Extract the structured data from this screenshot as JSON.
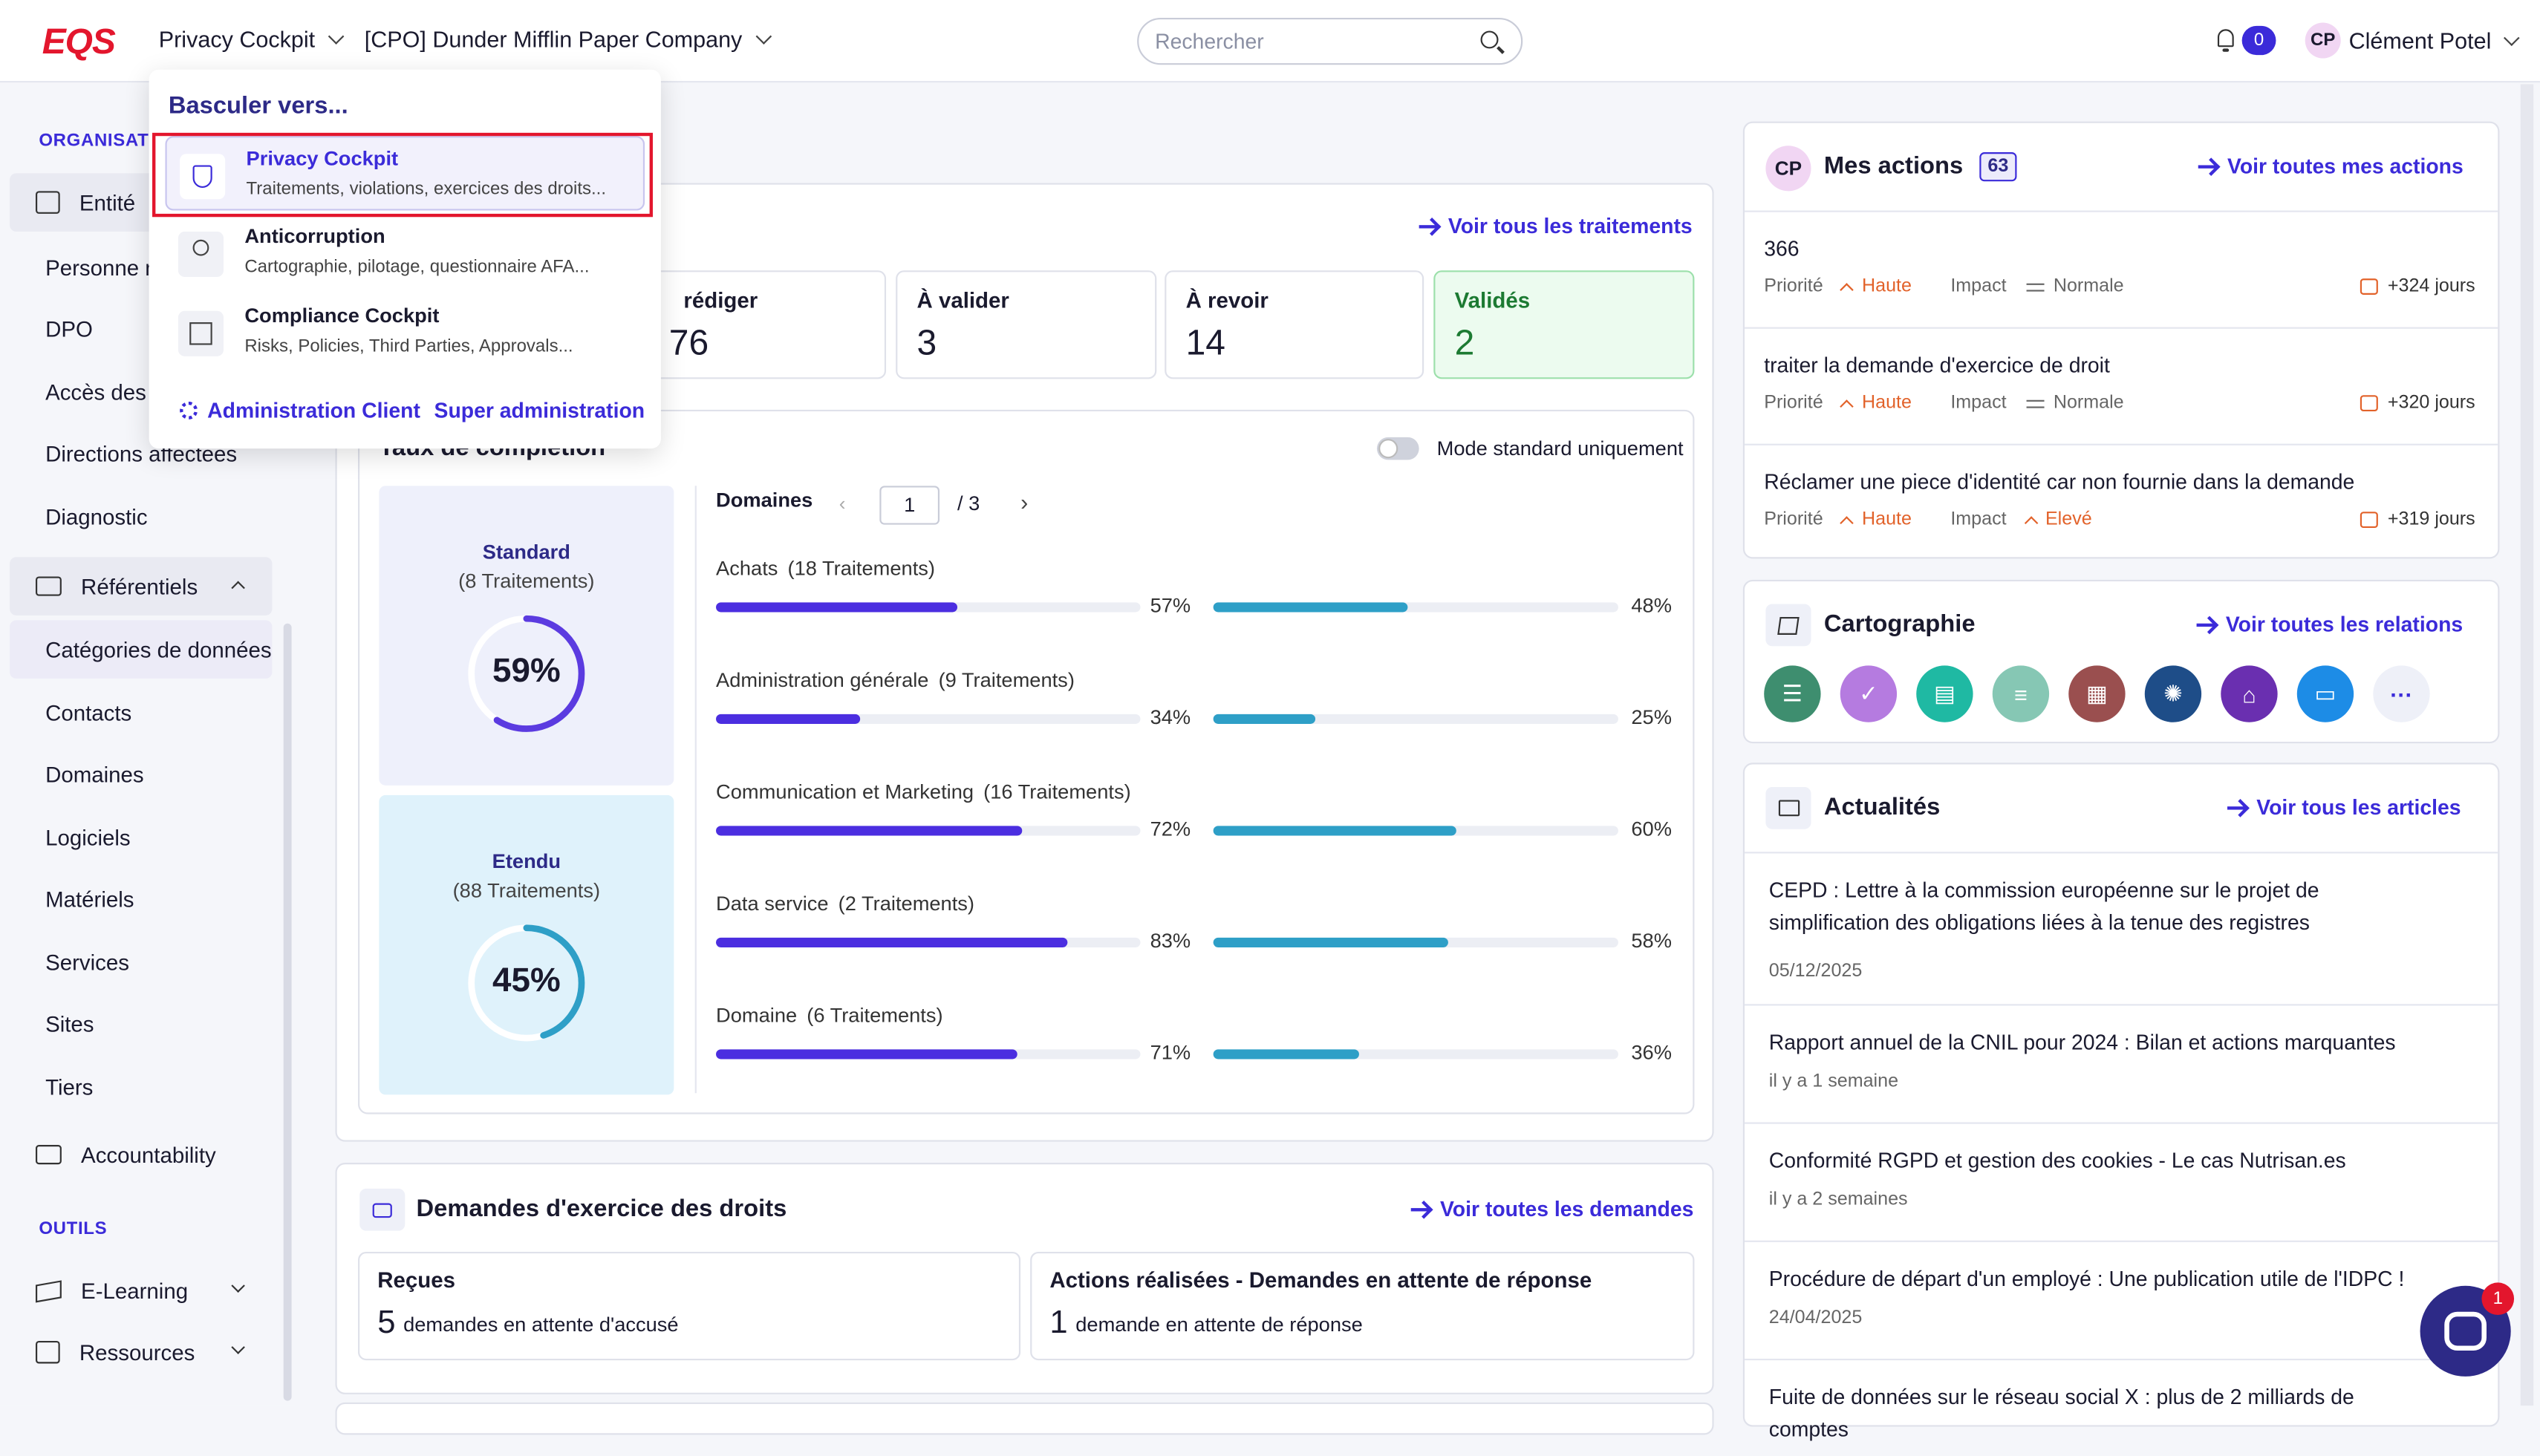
{
  "header": {
    "logo": "EQS",
    "app_select": "Privacy Cockpit",
    "company_select": "[CPO] Dunder Mifflin Paper Company",
    "search_placeholder": "Rechercher",
    "notifications_count": "0",
    "user_initials": "CP",
    "user_name": "Clément Potel"
  },
  "sidebar": {
    "section_org": "ORGANISATI",
    "entity": "Entité",
    "items_top": [
      "Personne n",
      "DPO",
      "Accès des u",
      "Directions affectées",
      "Diagnostic"
    ],
    "referentiels": "Référentiels",
    "selected": "Catégories de données",
    "items_ref": [
      "Contacts",
      "Domaines",
      "Logiciels",
      "Matériels",
      "Services",
      "Sites",
      "Tiers"
    ],
    "accountability": "Accountability",
    "section_tools": "OUTILS",
    "elearning": "E-Learning",
    "ressources": "Ressources"
  },
  "traitements": {
    "link": "Voir tous les traitements",
    "stats": [
      {
        "label": "rédiger",
        "value": "76"
      },
      {
        "label": "À valider",
        "value": "3"
      },
      {
        "label": "À revoir",
        "value": "14"
      },
      {
        "label": "Validés",
        "value": "2"
      }
    ]
  },
  "completion": {
    "title": "Taux de complétion",
    "toggle_label": "Mode standard uniquement",
    "standard": {
      "label": "Standard",
      "count": "(8 Traitements)",
      "pct": "59%",
      "value": 59
    },
    "etendu": {
      "label": "Etendu",
      "count": "(88 Traitements)",
      "pct": "45%",
      "value": 45
    },
    "domains_label": "Domaines",
    "page": "1",
    "page_total": "/ 3",
    "domains": [
      {
        "name": "Achats",
        "count": "(18 Traitements)",
        "a": 57,
        "a_label": "57%",
        "b": 48,
        "b_label": "48%"
      },
      {
        "name": "Administration générale",
        "count": "(9 Traitements)",
        "a": 34,
        "a_label": "34%",
        "b": 25,
        "b_label": "25%"
      },
      {
        "name": "Communication et Marketing",
        "count": "(16 Traitements)",
        "a": 72,
        "a_label": "72%",
        "b": 60,
        "b_label": "60%"
      },
      {
        "name": "Data service",
        "count": "(2 Traitements)",
        "a": 83,
        "a_label": "83%",
        "b": 58,
        "b_label": "58%"
      },
      {
        "name": "Domaine",
        "count": "(6 Traitements)",
        "a": 71,
        "a_label": "71%",
        "b": 36,
        "b_label": "36%"
      }
    ]
  },
  "demandes": {
    "title": "Demandes d'exercice des droits",
    "link": "Voir toutes les demandes",
    "recues_label": "Reçues",
    "recues_value": "5",
    "recues_text": "demandes en attente d'accusé",
    "actions_label": "Actions réalisées - Demandes en attente de réponse",
    "actions_value": "1",
    "actions_text": "demande en attente de réponse"
  },
  "mes_actions": {
    "initials": "CP",
    "title": "Mes actions",
    "count": "63",
    "link": "Voir toutes mes actions",
    "priority_label": "Priorité",
    "impact_label": "Impact",
    "items": [
      {
        "title": "366",
        "priority": "Haute",
        "impact": "Normale",
        "days": "+324 jours"
      },
      {
        "title": "traiter la demande d'exercice de droit",
        "priority": "Haute",
        "impact": "Normale",
        "days": "+320 jours"
      },
      {
        "title": "Réclamer une piece d'identité car non fournie dans la demande",
        "priority": "Haute",
        "impact": "Elevé",
        "days": "+319 jours"
      }
    ]
  },
  "cartographie": {
    "title": "Cartographie",
    "link": "Voir toutes les relations",
    "icons": [
      {
        "name": "list-icon",
        "color": "#3e8e6f",
        "glyph": "☰"
      },
      {
        "name": "shield-check-icon",
        "color": "#b57be0",
        "glyph": "✓"
      },
      {
        "name": "document-icon",
        "color": "#1fb9a3",
        "glyph": "▤"
      },
      {
        "name": "database-icon",
        "color": "#86c7b4",
        "glyph": "≡"
      },
      {
        "name": "report-icon",
        "color": "#9a4f4f",
        "glyph": "▦"
      },
      {
        "name": "users-icon",
        "color": "#1e4d88",
        "glyph": "✺"
      },
      {
        "name": "bank-icon",
        "color": "#6a2fb0",
        "glyph": "⌂"
      },
      {
        "name": "window-icon",
        "color": "#1d8ce6",
        "glyph": "▭"
      },
      {
        "name": "more-icon",
        "color": "#eef0f8",
        "glyph": "···"
      }
    ]
  },
  "actualites": {
    "title": "Actualités",
    "link": "Voir tous les articles",
    "items": [
      {
        "title": "CEPD : Lettre à la commission européenne sur le projet de simplification des obligations liées à la tenue des registres",
        "date": "05/12/2025"
      },
      {
        "title": "Rapport annuel de la CNIL pour 2024 : Bilan et actions marquantes",
        "date": "il y a 1 semaine"
      },
      {
        "title": "Conformité RGPD et gestion des cookies - Le cas Nutrisan.es",
        "date": "il y a 2 semaines"
      },
      {
        "title": "Procédure de départ d'un employé : Une publication utile de l'IDPC !",
        "date": "24/04/2025"
      },
      {
        "title": "Fuite de données sur le réseau social X : plus de 2 milliards de comptes",
        "date": ""
      }
    ]
  },
  "dropdown": {
    "heading": "Basculer vers...",
    "items": [
      {
        "title": "Privacy Cockpit",
        "sub": "Traitements, violations, exercices des droits..."
      },
      {
        "title": "Anticorruption",
        "sub": "Cartographie, pilotage, questionnaire AFA..."
      },
      {
        "title": "Compliance Cockpit",
        "sub": "Risks, Policies, Third Parties, Approvals..."
      }
    ],
    "admin_client": "Administration Client",
    "super_admin": "Super administration"
  },
  "chat_badge": "1",
  "colors": {
    "accent": "#3b2bd9",
    "bar_primary": "#4b2ee0",
    "bar_secondary": "#2e9fc7",
    "ring_standard": "#5b3be0",
    "ring_etendu": "#2e9fc7"
  }
}
